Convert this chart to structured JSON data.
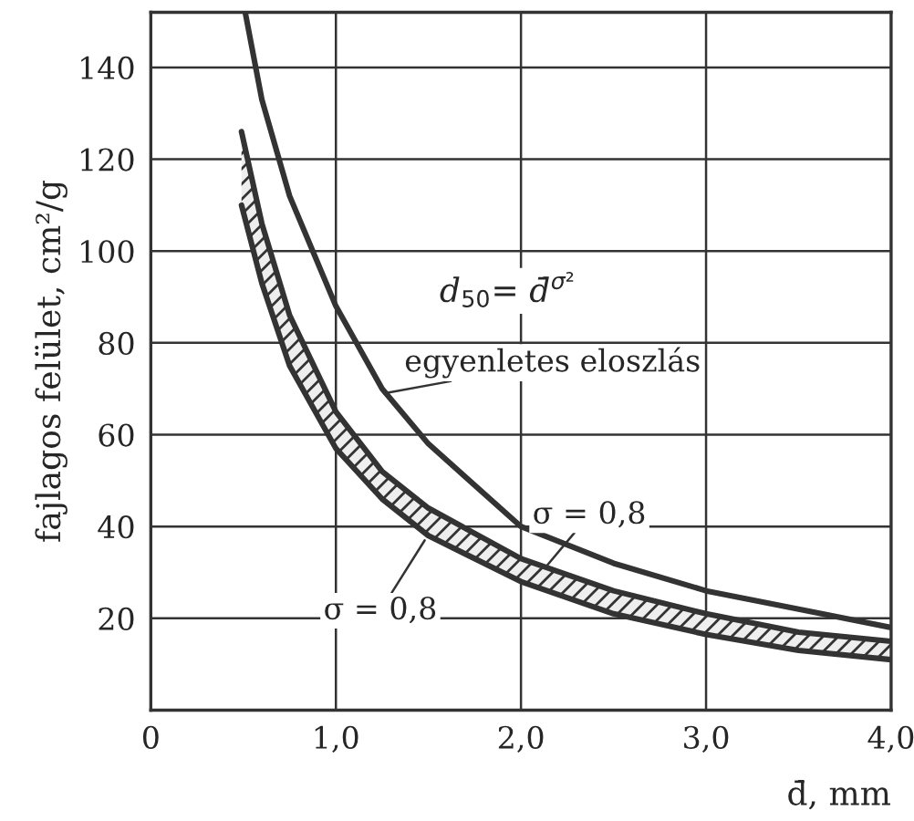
{
  "chart_data": {
    "type": "line",
    "xlabel": "d̄, mm",
    "ylabel": "fajlagos felület, cm²/g",
    "series": [
      {
        "color": "#333333",
        "x": [
          0.51,
          0.6,
          0.75,
          1.0,
          1.25,
          1.5,
          2.0,
          2.5,
          3.0,
          3.5,
          4.0
        ],
        "values": [
          152,
          133,
          112,
          88,
          70,
          58,
          40,
          32,
          26,
          22,
          18
        ]
      },
      {
        "color": "#333333",
        "x": [
          0.49,
          0.6,
          0.75,
          1.0,
          1.25,
          1.5,
          2.0,
          2.5,
          3.0,
          3.5,
          4.0
        ],
        "values": [
          126,
          106,
          86,
          65,
          52,
          44,
          33,
          26,
          21,
          17,
          15
        ],
        "upper": [
          126,
          106,
          86,
          65,
          52,
          44,
          33,
          26,
          21,
          17,
          15
        ],
        "lower": [
          110,
          93,
          75,
          57,
          46,
          38,
          28,
          21,
          16.5,
          13,
          11
        ]
      },
      {
        "color": "#333333",
        "x": [
          0.49,
          0.6,
          0.75,
          1.0,
          1.25,
          1.5,
          2.0,
          2.5,
          3.0,
          3.5,
          4.0
        ],
        "values": [
          110,
          93,
          75,
          57,
          46,
          38,
          28,
          21,
          16.5,
          13,
          11
        ]
      }
    ],
    "xlim": [
      0,
      4
    ],
    "ylim": [
      0,
      152
    ],
    "xticks": [
      0,
      {
        "value": 1,
        "label": "1,0"
      },
      {
        "value": 2,
        "label": "2,0"
      },
      {
        "value": 3,
        "label": "3,0"
      },
      {
        "value": 4,
        "label": "4,0"
      }
    ],
    "yticks": [
      20,
      40,
      60,
      80,
      100,
      120,
      140
    ],
    "grid": true,
    "marker": "none",
    "line_style": "solid",
    "annotations": [
      "d$_{50}$= d̄$^{σ²}$",
      {
        "text": "egyenletes eloszlás",
        "x": 1.26,
        "y": 69
      },
      {
        "text": "σ = 0,8",
        "x": 2.13,
        "y": 31
      },
      {
        "text": "σ = 0,8",
        "x": 1.48,
        "y": 37
      }
    ]
  }
}
